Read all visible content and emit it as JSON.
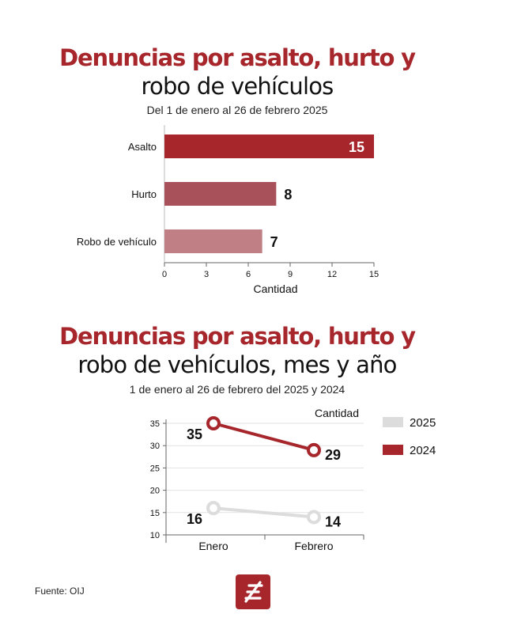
{
  "chart1": {
    "title_line1": "Denuncias por asalto, hurto y",
    "title_line2": "robo de vehículos",
    "subtitle": "Del 1 de enero al 26 de febrero 2025"
  },
  "chart2": {
    "title_line1": "Denuncias por asalto, hurto y",
    "title_line2": "robo de vehículos, mes y año",
    "subtitle": "1 de enero al 26 de febrero del 2025 y 2024"
  },
  "source": "Fuente: OIJ",
  "colors": {
    "brand_red": "#a6262b",
    "bar_asalto": "#a6262b",
    "bar_hurto": "#a8515a",
    "bar_robo": "#bf7f85",
    "line_2024": "#a6262b",
    "line_2025": "#dcdcdc"
  },
  "logo_icon": "brand-logo-icon",
  "chart_data": [
    {
      "type": "bar",
      "orientation": "horizontal",
      "title": "Denuncias por asalto, hurto y robo de vehículos",
      "subtitle": "Del 1 de enero al 26 de febrero 2025",
      "categories": [
        "Asalto",
        "Hurto",
        "Robo de vehículo"
      ],
      "values": [
        15,
        8,
        7
      ],
      "xlabel": "Cantidad",
      "xlim": [
        0,
        15
      ],
      "xticks": [
        0,
        3,
        6,
        9,
        12,
        15
      ]
    },
    {
      "type": "line",
      "title": "Denuncias por asalto, hurto y robo de vehículos, mes y año",
      "subtitle": "1 de enero al 26 de febrero del 2025 y 2024",
      "categories": [
        "Enero",
        "Febrero"
      ],
      "ylabel": "Cantidad",
      "ylim": [
        10,
        35
      ],
      "yticks": [
        10,
        15,
        20,
        25,
        30,
        35
      ],
      "grid": true,
      "legend": "right",
      "series": [
        {
          "name": "2025",
          "values": [
            16,
            14
          ]
        },
        {
          "name": "2024",
          "values": [
            35,
            29
          ]
        }
      ]
    }
  ]
}
